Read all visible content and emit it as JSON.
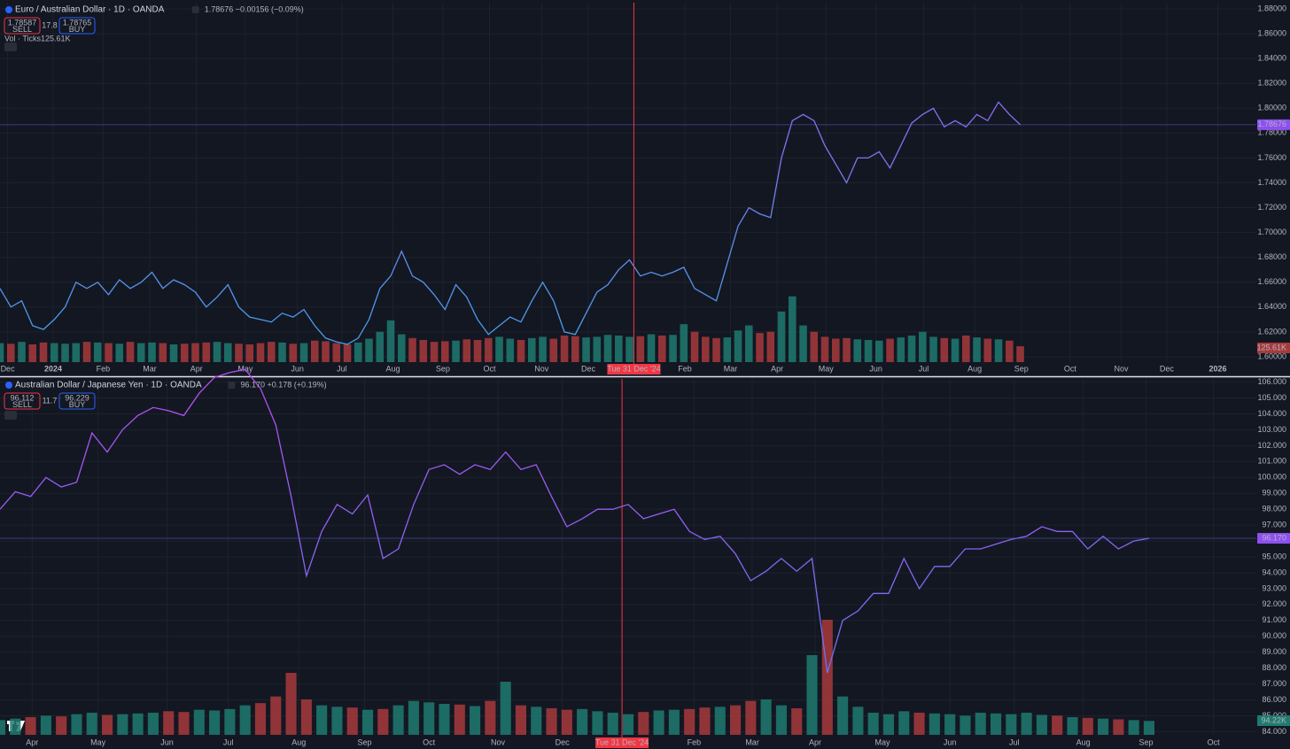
{
  "chart_data": [
    {
      "type": "line",
      "title": "Euro / Australian Dollar · 1D · OANDA",
      "quote": "1.78676 −0.00156 (−0.09%)",
      "sell_price": 1.78587,
      "sell_label": "SELL",
      "spread": 17.8,
      "buy_price": 1.78765,
      "buy_label": "BUY",
      "volume_title": "Vol · Ticks",
      "volume_label": "125.61K",
      "color_top": "#a855f7",
      "color_bottom": "#3fa4e8",
      "volume_up_color": "#1f7a70",
      "volume_down_color": "#a83a3c",
      "crosshair_color": "#f23645",
      "values": [
        1.655,
        1.64,
        1.645,
        1.625,
        1.622,
        1.63,
        1.64,
        1.66,
        1.655,
        1.66,
        1.65,
        1.662,
        1.655,
        1.66,
        1.668,
        1.655,
        1.662,
        1.658,
        1.652,
        1.64,
        1.648,
        1.658,
        1.64,
        1.632,
        1.63,
        1.628,
        1.635,
        1.632,
        1.638,
        1.625,
        1.615,
        1.612,
        1.61,
        1.615,
        1.63,
        1.655,
        1.665,
        1.685,
        1.665,
        1.66,
        1.65,
        1.638,
        1.658,
        1.648,
        1.63,
        1.618,
        1.625,
        1.632,
        1.628,
        1.645,
        1.66,
        1.645,
        1.62,
        1.618,
        1.635,
        1.652,
        1.658,
        1.67,
        1.678,
        1.665,
        1.668,
        1.665,
        1.668,
        1.672,
        1.655,
        1.65,
        1.645,
        1.675,
        1.705,
        1.72,
        1.715,
        1.712,
        1.76,
        1.79,
        1.795,
        1.79,
        1.77,
        1.755,
        1.74,
        1.76,
        1.76,
        1.765,
        1.752,
        1.77,
        1.788,
        1.795,
        1.8,
        1.785,
        1.79,
        1.785,
        1.795,
        1.79,
        1.805,
        1.795,
        1.78676
      ],
      "volumes": [
        150000,
        145000,
        160000,
        140000,
        155000,
        150000,
        145000,
        150000,
        160000,
        155000,
        150000,
        145000,
        160000,
        150000,
        155000,
        150000,
        140000,
        145000,
        150000,
        155000,
        160000,
        150000,
        145000,
        140000,
        150000,
        160000,
        155000,
        145000,
        150000,
        170000,
        165000,
        150000,
        140000,
        155000,
        185000,
        240000,
        330000,
        220000,
        190000,
        175000,
        160000,
        165000,
        170000,
        180000,
        175000,
        190000,
        200000,
        185000,
        175000,
        190000,
        200000,
        185000,
        210000,
        205000,
        195000,
        200000,
        215000,
        210000,
        200000,
        205000,
        220000,
        210000,
        215000,
        300000,
        240000,
        200000,
        190000,
        195000,
        250000,
        290000,
        230000,
        240000,
        400000,
        520000,
        290000,
        240000,
        200000,
        185000,
        190000,
        180000,
        175000,
        170000,
        185000,
        195000,
        210000,
        240000,
        200000,
        190000,
        185000,
        210000,
        195000,
        185000,
        180000,
        170000,
        125610
      ],
      "volume_ylim": [
        0,
        700000
      ],
      "xlim": [
        0,
        115.75
      ],
      "xticks": [
        {
          "value": 0.7,
          "label": "Dec"
        },
        {
          "value": 4.9,
          "label": "2024"
        },
        {
          "value": 9.5,
          "label": "Feb"
        },
        {
          "value": 13.8,
          "label": "Mar"
        },
        {
          "value": 18.1,
          "label": "Apr"
        },
        {
          "value": 22.6,
          "label": "May"
        },
        {
          "value": 27.4,
          "label": "Jun"
        },
        {
          "value": 31.5,
          "label": "Jul"
        },
        {
          "value": 36.2,
          "label": "Aug"
        },
        {
          "value": 40.8,
          "label": "Sep"
        },
        {
          "value": 45.1,
          "label": "Oct"
        },
        {
          "value": 49.9,
          "label": "Nov"
        },
        {
          "value": 54.2,
          "label": "Dec"
        },
        {
          "value": 63.1,
          "label": "Feb"
        },
        {
          "value": 67.3,
          "label": "Mar"
        },
        {
          "value": 71.6,
          "label": "Apr"
        },
        {
          "value": 76.1,
          "label": "May"
        },
        {
          "value": 80.7,
          "label": "Jun"
        },
        {
          "value": 85.1,
          "label": "Jul"
        },
        {
          "value": 89.8,
          "label": "Aug"
        },
        {
          "value": 94.1,
          "label": "Sep"
        },
        {
          "value": 98.6,
          "label": "Oct"
        },
        {
          "value": 103.3,
          "label": "Nov"
        },
        {
          "value": 107.5,
          "label": "Dec"
        },
        {
          "value": 112.2,
          "label": "2026"
        }
      ],
      "crosshair": {
        "x": 58.4,
        "label": "Tue 31 Dec '24"
      },
      "ylim": [
        1.5957,
        1.885
      ],
      "yticks": [
        {
          "value": 1.6,
          "label": "1.60000"
        },
        {
          "value": 1.62,
          "label": "1.62000"
        },
        {
          "value": 1.64,
          "label": "1.64000"
        },
        {
          "value": 1.66,
          "label": "1.66000"
        },
        {
          "value": 1.68,
          "label": "1.68000"
        },
        {
          "value": 1.7,
          "label": "1.70000"
        },
        {
          "value": 1.72,
          "label": "1.72000"
        },
        {
          "value": 1.74,
          "label": "1.74000"
        },
        {
          "value": 1.76,
          "label": "1.76000"
        },
        {
          "value": 1.78,
          "label": "1.78000"
        },
        {
          "value": 1.8,
          "label": "1.80000"
        },
        {
          "value": 1.82,
          "label": "1.82000"
        },
        {
          "value": 1.84,
          "label": "1.84000"
        },
        {
          "value": 1.86,
          "label": "1.86000"
        },
        {
          "value": 1.88,
          "label": "1.88000"
        }
      ],
      "grid": true
    },
    {
      "type": "line",
      "title": "Australian Dollar / Japanese Yen · 1D · OANDA",
      "quote": "96.170 +0.178 (+0.19%)",
      "sell_price": 96.112,
      "sell_label": "SELL",
      "spread": 11.7,
      "buy_price": 96.229,
      "buy_label": "BUY",
      "volume_label": "94.22K",
      "last_value_label": "96.170",
      "color_top": "#b44ef0",
      "color_bottom": "#5b7cf5",
      "volume_up_color": "#1f7a70",
      "volume_down_color": "#a83a3c",
      "crosshair_color": "#f23645",
      "values": [
        98.0,
        99.1,
        98.8,
        100.0,
        99.4,
        99.7,
        102.8,
        101.6,
        103.0,
        103.9,
        104.4,
        104.2,
        103.9,
        105.3,
        106.3,
        106.6,
        106.8,
        105.6,
        103.3,
        98.8,
        93.8,
        96.6,
        98.3,
        97.7,
        98.9,
        94.9,
        95.5,
        98.3,
        100.5,
        100.8,
        100.2,
        100.8,
        100.5,
        101.6,
        100.5,
        100.8,
        98.8,
        96.9,
        97.4,
        98.0,
        98.0,
        98.3,
        97.4,
        97.7,
        98.0,
        96.6,
        96.1,
        96.3,
        95.2,
        93.5,
        94.1,
        94.9,
        94.1,
        94.9,
        87.7,
        91.0,
        91.6,
        92.7,
        92.7,
        94.9,
        93.0,
        94.4,
        94.4,
        95.5,
        95.5,
        95.8,
        96.1,
        96.3,
        96.9,
        96.6,
        96.6,
        95.5,
        96.3,
        95.5,
        96.0,
        96.17
      ],
      "volumes": [
        100000,
        110000,
        120000,
        130000,
        125000,
        140000,
        150000,
        135000,
        140000,
        145000,
        150000,
        160000,
        155000,
        170000,
        165000,
        175000,
        200000,
        215000,
        260000,
        420000,
        240000,
        200000,
        190000,
        185000,
        170000,
        175000,
        200000,
        230000,
        220000,
        210000,
        205000,
        195000,
        230000,
        360000,
        200000,
        190000,
        180000,
        170000,
        175000,
        160000,
        150000,
        140000,
        155000,
        165000,
        170000,
        175000,
        185000,
        190000,
        200000,
        230000,
        240000,
        200000,
        180000,
        540000,
        780000,
        260000,
        190000,
        150000,
        140000,
        160000,
        150000,
        145000,
        140000,
        130000,
        150000,
        145000,
        140000,
        150000,
        135000,
        130000,
        120000,
        115000,
        110000,
        105000,
        100000,
        94220
      ],
      "volume_ylim": [
        0,
        900000
      ],
      "xlim": [
        0,
        82
      ],
      "xticks": [
        {
          "value": 2.1,
          "label": "Apr"
        },
        {
          "value": 6.4,
          "label": "May"
        },
        {
          "value": 10.9,
          "label": "Jun"
        },
        {
          "value": 14.9,
          "label": "Jul"
        },
        {
          "value": 19.5,
          "label": "Aug"
        },
        {
          "value": 23.8,
          "label": "Sep"
        },
        {
          "value": 28.0,
          "label": "Oct"
        },
        {
          "value": 32.5,
          "label": "Nov"
        },
        {
          "value": 36.7,
          "label": "Dec"
        },
        {
          "value": 45.3,
          "label": "Feb"
        },
        {
          "value": 49.1,
          "label": "Mar"
        },
        {
          "value": 53.2,
          "label": "Apr"
        },
        {
          "value": 57.6,
          "label": "May"
        },
        {
          "value": 62.0,
          "label": "Jun"
        },
        {
          "value": 66.2,
          "label": "Jul"
        },
        {
          "value": 70.7,
          "label": "Aug"
        },
        {
          "value": 74.8,
          "label": "Sep"
        },
        {
          "value": 79.2,
          "label": "Oct"
        }
      ],
      "crosshair": {
        "x": 40.6,
        "label": "Tue 31 Dec '24"
      },
      "ylim": [
        83.8,
        106.2
      ],
      "yticks": [
        {
          "value": 84,
          "label": "84.000"
        },
        {
          "value": 85,
          "label": "85.000"
        },
        {
          "value": 86,
          "label": "86.000"
        },
        {
          "value": 87,
          "label": "87.000"
        },
        {
          "value": 88,
          "label": "88.000"
        },
        {
          "value": 89,
          "label": "89.000"
        },
        {
          "value": 90,
          "label": "90.000"
        },
        {
          "value": 91,
          "label": "91.000"
        },
        {
          "value": 92,
          "label": "92.000"
        },
        {
          "value": 93,
          "label": "93.000"
        },
        {
          "value": 94,
          "label": "94.000"
        },
        {
          "value": 95,
          "label": "95.000"
        },
        {
          "value": 96,
          "label": "96.000"
        },
        {
          "value": 97,
          "label": "97.000"
        },
        {
          "value": 98,
          "label": "98.000"
        },
        {
          "value": 99,
          "label": "99.000"
        },
        {
          "value": 100,
          "label": "100.000"
        },
        {
          "value": 101,
          "label": "101.000"
        },
        {
          "value": 102,
          "label": "102.000"
        },
        {
          "value": 103,
          "label": "103.000"
        },
        {
          "value": 104,
          "label": "104.000"
        },
        {
          "value": 105,
          "label": "105.000"
        },
        {
          "value": 106,
          "label": "106.000"
        }
      ],
      "grid": true
    }
  ]
}
